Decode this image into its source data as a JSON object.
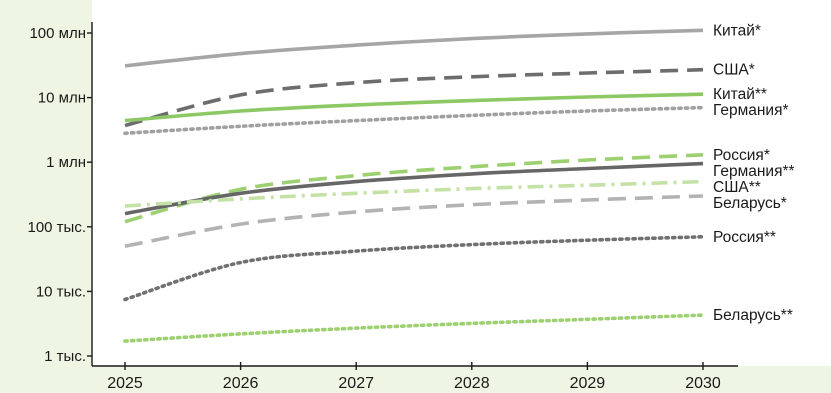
{
  "chart_data": {
    "type": "line",
    "title": "",
    "xlabel": "",
    "ylabel": "",
    "y_scale": "log",
    "ylim": [
      1000,
      100000000
    ],
    "xlim": [
      2025,
      2030
    ],
    "grid": false,
    "legend": "series labels at right end of lines",
    "x_ticks": [
      2025,
      2026,
      2027,
      2028,
      2029,
      2030
    ],
    "x_tick_labels": [
      "2025",
      "2026",
      "2027",
      "2028",
      "2029",
      "2030"
    ],
    "y_ticks": [
      1000,
      10000,
      100000,
      1000000,
      10000000,
      100000000
    ],
    "y_tick_labels": [
      "1 тыс.",
      "10 тыс.",
      "100 тыс.",
      "1 млн",
      "10 млн",
      "100 млн"
    ],
    "x": [
      2025,
      2026,
      2027,
      2028,
      2029,
      2030
    ],
    "series": [
      {
        "name": "Китай*",
        "color": "#a6a6a6",
        "dash": "solid",
        "values": [
          31000000,
          48000000,
          65000000,
          82000000,
          97000000,
          110000000
        ]
      },
      {
        "name": "США*",
        "color": "#6d6d6d",
        "dash": "dashed",
        "values": [
          3700000,
          11000000,
          17000000,
          21000000,
          24000000,
          27000000
        ]
      },
      {
        "name": "Китай**",
        "color": "#8cc864",
        "dash": "solid",
        "values": [
          4400000,
          6200000,
          7700000,
          9000000,
          10200000,
          11300000
        ]
      },
      {
        "name": "Германия*",
        "color": "#a0a0a0",
        "dash": "dotted",
        "values": [
          2800000,
          3600000,
          4400000,
          5300000,
          6200000,
          7000000
        ]
      },
      {
        "name": "Россия*",
        "color": "#9cd070",
        "dash": "dashed",
        "values": [
          120000,
          380000,
          620000,
          850000,
          1080000,
          1300000
        ]
      },
      {
        "name": "Германия**",
        "color": "#666666",
        "dash": "solid",
        "values": [
          160000,
          330000,
          500000,
          660000,
          800000,
          950000
        ]
      },
      {
        "name": "США**",
        "color": "#c4e2a6",
        "dash": "dashdot",
        "values": [
          210000,
          270000,
          330000,
          390000,
          440000,
          500000
        ]
      },
      {
        "name": "Беларусь*",
        "color": "#b3b3b3",
        "dash": "dashed",
        "values": [
          50000,
          110000,
          170000,
          220000,
          260000,
          300000
        ]
      },
      {
        "name": "Россия**",
        "color": "#707070",
        "dash": "dotted",
        "values": [
          7500,
          28000,
          42000,
          53000,
          62000,
          70000
        ]
      },
      {
        "name": "Беларусь**",
        "color": "#9cd070",
        "dash": "dotted",
        "values": [
          1700,
          2200,
          2700,
          3200,
          3700,
          4300
        ]
      }
    ],
    "label_order": [
      "Китай*",
      "США*",
      "Китай**",
      "Германия*",
      "Россия*",
      "Германия**",
      "США**",
      "Беларусь*",
      "Россия**",
      "Беларусь**"
    ]
  }
}
